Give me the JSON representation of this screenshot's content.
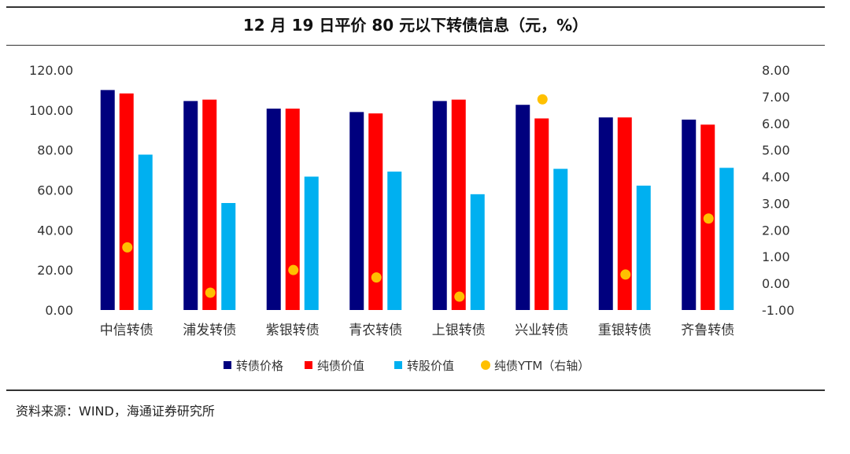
{
  "title": "12 月 19 日平价 80 元以下转债信息（元，%）",
  "source": "资料来源：WIND，海通证券研究所",
  "colors": {
    "bond_price": "#00007e",
    "pure_bond_value": "#ff0000",
    "conversion_value": "#00b0f0",
    "ytm": "#ffc000"
  },
  "chart_data": {
    "type": "bar",
    "title": "12 月 19 日平价 80 元以下转债信息（元，%）",
    "categories": [
      "中信转债",
      "浦发转债",
      "紫银转债",
      "青农转债",
      "上银转债",
      "兴业转债",
      "重银转债",
      "齐鲁转债"
    ],
    "series": [
      {
        "name": "转债价格",
        "axis": "left",
        "kind": "bar",
        "values": [
          110.0,
          104.5,
          100.7,
          99.0,
          104.5,
          102.6,
          96.3,
          95.2
        ]
      },
      {
        "name": "纯债价值",
        "axis": "left",
        "kind": "bar",
        "values": [
          108.3,
          105.2,
          100.7,
          98.3,
          105.2,
          95.8,
          96.3,
          92.7
        ]
      },
      {
        "name": "转股价值",
        "axis": "left",
        "kind": "bar",
        "values": [
          77.7,
          53.5,
          66.7,
          69.2,
          57.9,
          70.6,
          62.2,
          71.1
        ]
      },
      {
        "name": "纯债YTM（右轴）",
        "axis": "right",
        "kind": "scatter",
        "values": [
          1.35,
          -0.35,
          0.5,
          0.22,
          -0.5,
          6.9,
          0.33,
          2.43
        ]
      }
    ],
    "y_left": {
      "min": 0,
      "max": 120,
      "step": 20,
      "ticks": [
        "0.00",
        "20.00",
        "40.00",
        "60.00",
        "80.00",
        "100.00",
        "120.00"
      ]
    },
    "y_right": {
      "min": -1,
      "max": 8,
      "step": 1,
      "ticks": [
        "-1.00",
        "0.00",
        "1.00",
        "2.00",
        "3.00",
        "4.00",
        "5.00",
        "6.00",
        "7.00",
        "8.00"
      ]
    },
    "grid": false,
    "legend": "bottom"
  }
}
